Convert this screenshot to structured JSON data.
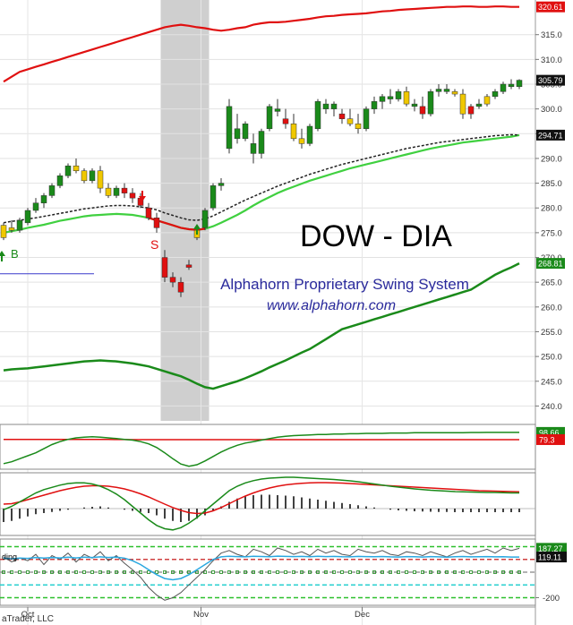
{
  "chart_data": {
    "type": "candlestick",
    "title": "DOW - DIA",
    "subtitle": "Alphahorn Proprietary Swing System",
    "url": "www.alphahorn.com",
    "credit": "aTrader, LLC",
    "signals": {
      "buy": "B",
      "sell": "S"
    },
    "x_ticks": [
      "Oct",
      "Nov",
      "Dec"
    ],
    "y_ticks": [
      240,
      245,
      250,
      255,
      260,
      265,
      270,
      275,
      280,
      285,
      290,
      295,
      300,
      305,
      310,
      315
    ],
    "ylim": [
      237,
      322
    ],
    "grid": true,
    "badges": {
      "upper_band": "320.61",
      "last_price": "305.79",
      "moving_average": "294.71",
      "lower_band": "268.81"
    },
    "candles": [
      [
        274.0,
        277.0,
        273.5,
        276.5,
        "y"
      ],
      [
        276.0,
        277.5,
        275.0,
        275.5,
        "y"
      ],
      [
        275.5,
        278.0,
        275.0,
        277.5,
        "g"
      ],
      [
        277.0,
        280.0,
        276.5,
        279.5,
        "g"
      ],
      [
        279.5,
        282.0,
        279.0,
        281.0,
        "g"
      ],
      [
        281.0,
        283.0,
        280.0,
        282.5,
        "g"
      ],
      [
        282.5,
        285.0,
        282.0,
        284.5,
        "g"
      ],
      [
        284.5,
        287.0,
        284.0,
        286.5,
        "g"
      ],
      [
        286.5,
        289.0,
        286.0,
        288.5,
        "g"
      ],
      [
        288.5,
        290.0,
        287.0,
        287.5,
        "y"
      ],
      [
        287.5,
        288.0,
        285.0,
        285.5,
        "y"
      ],
      [
        285.5,
        288.0,
        285.0,
        287.5,
        "g"
      ],
      [
        287.5,
        288.5,
        283.0,
        284.0,
        "y"
      ],
      [
        284.0,
        285.0,
        282.0,
        282.5,
        "y"
      ],
      [
        282.5,
        284.5,
        282.0,
        284.0,
        "g"
      ],
      [
        284.0,
        285.0,
        282.0,
        283.0,
        "r"
      ],
      [
        283.0,
        284.0,
        281.0,
        282.0,
        "r"
      ],
      [
        282.0,
        283.0,
        280.0,
        280.5,
        "r"
      ],
      [
        280.0,
        281.0,
        277.5,
        278.0,
        "r"
      ],
      [
        278.0,
        279.0,
        275.0,
        276.0,
        "r"
      ],
      [
        270.0,
        271.5,
        265.0,
        266.0,
        "r"
      ],
      [
        266.0,
        267.0,
        264.0,
        265.0,
        "r"
      ],
      [
        265.0,
        266.0,
        262.0,
        263.0,
        "r"
      ],
      [
        268.0,
        269.5,
        267.5,
        268.5,
        "r"
      ],
      [
        274.0,
        276.0,
        273.5,
        275.5,
        "y"
      ],
      [
        276.0,
        280.0,
        275.5,
        279.5,
        "g"
      ],
      [
        280.0,
        285.0,
        279.5,
        284.5,
        "g"
      ],
      [
        284.5,
        286.0,
        283.5,
        285.0,
        "g"
      ],
      [
        292.0,
        302.0,
        291.0,
        300.5,
        "g"
      ],
      [
        296.0,
        299.0,
        293.0,
        294.0,
        "g"
      ],
      [
        294.0,
        297.5,
        293.5,
        297.0,
        "g"
      ],
      [
        293.0,
        295.0,
        289.0,
        291.0,
        "g"
      ],
      [
        291.0,
        296.0,
        290.0,
        295.5,
        "g"
      ],
      [
        296.0,
        301.0,
        295.5,
        300.5,
        "g"
      ],
      [
        300.0,
        302.0,
        298.5,
        299.5,
        "g"
      ],
      [
        298.0,
        300.0,
        296.0,
        297.0,
        "r"
      ],
      [
        297.0,
        299.0,
        293.5,
        294.0,
        "y"
      ],
      [
        294.0,
        296.0,
        292.0,
        293.0,
        "y"
      ],
      [
        293.0,
        297.0,
        292.5,
        296.5,
        "g"
      ],
      [
        296.0,
        302.0,
        295.5,
        301.5,
        "g"
      ],
      [
        301.0,
        302.0,
        299.0,
        300.0,
        "g"
      ],
      [
        300.0,
        301.5,
        298.5,
        301.0,
        "g"
      ],
      [
        299.0,
        300.0,
        297.0,
        298.0,
        "r"
      ],
      [
        298.0,
        300.0,
        296.5,
        297.0,
        "y"
      ],
      [
        297.0,
        299.0,
        295.0,
        296.0,
        "y"
      ],
      [
        296.0,
        300.5,
        295.5,
        300.0,
        "g"
      ],
      [
        300.0,
        302.5,
        299.0,
        301.5,
        "g"
      ],
      [
        301.5,
        303.0,
        300.0,
        302.5,
        "g"
      ],
      [
        302.5,
        304.0,
        301.0,
        302.0,
        "g"
      ],
      [
        302.0,
        304.0,
        301.5,
        303.5,
        "g"
      ],
      [
        303.5,
        304.5,
        300.5,
        301.0,
        "y"
      ],
      [
        301.0,
        302.0,
        299.5,
        300.5,
        "g"
      ],
      [
        300.5,
        302.5,
        298.0,
        299.0,
        "r"
      ],
      [
        299.0,
        304.0,
        298.5,
        303.5,
        "g"
      ],
      [
        303.5,
        305.0,
        302.5,
        304.0,
        "g"
      ],
      [
        304.0,
        305.0,
        303.0,
        303.5,
        "g"
      ],
      [
        303.5,
        304.0,
        302.5,
        303.0,
        "y"
      ],
      [
        303.0,
        304.0,
        298.0,
        299.0,
        "y"
      ],
      [
        299.0,
        301.0,
        298.0,
        300.5,
        "r"
      ],
      [
        300.5,
        302.0,
        300.0,
        301.0,
        "g"
      ],
      [
        301.0,
        303.0,
        300.5,
        302.5,
        "y"
      ],
      [
        302.5,
        304.0,
        302.0,
        303.5,
        "g"
      ],
      [
        303.5,
        305.5,
        303.0,
        305.0,
        "g"
      ],
      [
        305.0,
        306.0,
        304.0,
        304.5,
        "g"
      ],
      [
        304.5,
        306.0,
        304.0,
        305.8,
        "g"
      ]
    ],
    "upper_band": [
      305.5,
      306.5,
      307.5,
      308,
      308.5,
      309,
      309.5,
      310,
      310.5,
      311,
      311.5,
      312,
      312.5,
      313,
      313.5,
      314,
      314.5,
      315,
      315.5,
      316,
      316.5,
      316.8,
      317,
      316.8,
      316.5,
      316.3,
      316,
      315.8,
      316,
      316.3,
      316.5,
      317,
      317.3,
      317.5,
      317.5,
      317.6,
      317.8,
      318,
      318.2,
      318.5,
      318.7,
      318.8,
      319,
      319.1,
      319.2,
      319.3,
      319.5,
      319.7,
      319.8,
      320,
      320.1,
      320.2,
      320.3,
      320.4,
      320.5,
      320.6,
      320.6,
      320.7,
      320.7,
      320.6,
      320.6,
      320.7,
      320.7,
      320.6,
      320.61
    ],
    "moving_average": [
      275,
      275.3,
      275.6,
      276,
      276.3,
      276.6,
      277,
      277.4,
      277.7,
      278,
      278.3,
      278.5,
      278.6,
      278.7,
      278.8,
      278.7,
      278.6,
      278.3,
      278,
      277.5,
      277,
      276.5,
      276,
      275.7,
      275.6,
      275.8,
      276.3,
      277,
      277.8,
      278.6,
      279.5,
      280.5,
      281.4,
      282.2,
      283,
      283.7,
      284.3,
      284.9,
      285.5,
      286,
      286.5,
      287,
      287.5,
      288,
      288.4,
      288.8,
      289.2,
      289.6,
      290,
      290.4,
      290.8,
      291.2,
      291.6,
      292,
      292.3,
      292.6,
      292.9,
      293.2,
      293.4,
      293.6,
      293.8,
      294,
      294.2,
      294.4,
      294.71
    ],
    "trend_line": [
      277,
      277.3,
      277.5,
      277.8,
      278,
      278.3,
      278.6,
      278.9,
      279.2,
      279.5,
      279.8,
      280,
      280.2,
      280.4,
      280.5,
      280.5,
      280.4,
      280.2,
      280,
      279.6,
      279,
      278.5,
      278,
      277.6,
      277.5,
      277.8,
      278.4,
      279.2,
      280,
      280.8,
      281.6,
      282.3,
      283,
      283.7,
      284.4,
      285,
      285.6,
      286.2,
      286.8,
      287.3,
      287.8,
      288.3,
      288.8,
      289.2,
      289.6,
      290,
      290.4,
      290.8,
      291.2,
      291.6,
      292,
      292.3,
      292.6,
      292.9,
      293.2,
      293.4,
      293.6,
      293.8,
      294,
      294.2,
      294.4,
      294.6,
      294.7,
      294.8,
      294.71
    ],
    "lower_band": [
      247.2,
      247.4,
      247.5,
      247.6,
      247.8,
      248,
      248.2,
      248.4,
      248.6,
      248.8,
      249,
      249.1,
      249.2,
      249.1,
      249,
      248.8,
      248.6,
      248.3,
      248,
      247.5,
      247,
      246.5,
      246,
      245.3,
      244.5,
      243.8,
      243.5,
      244,
      244.5,
      245,
      245.6,
      246.3,
      247,
      247.8,
      248.5,
      249.2,
      250,
      250.8,
      251.5,
      252.5,
      253.5,
      254.5,
      255.5,
      256,
      256.5,
      257,
      257.5,
      258,
      258.5,
      259,
      259.5,
      260,
      260.5,
      261,
      261.5,
      262,
      262.5,
      263,
      263.5,
      264.5,
      265.5,
      266.5,
      267.3,
      268,
      268.81
    ],
    "support_line_price": 266.7,
    "sell_zone_start": 19.5,
    "sell_zone_end": 25.5,
    "buy_signal_index": 0,
    "buy_signal_index_2": 24,
    "sell_signal_index": 17,
    "osc1": {
      "badge_green": "98.66",
      "badge_red": "79.3",
      "ylim": [
        0,
        120
      ],
      "green_line": [
        15,
        20,
        28,
        36,
        44,
        55,
        66,
        74,
        80,
        84,
        86,
        87,
        86,
        84,
        82,
        80,
        78,
        74,
        68,
        58,
        44,
        28,
        14,
        8,
        12,
        22,
        34,
        46,
        56,
        64,
        70,
        74,
        78,
        82,
        86,
        88,
        90,
        91,
        92,
        93,
        93,
        94,
        94,
        95,
        95,
        96,
        96,
        96,
        97,
        97,
        97,
        98,
        98,
        98,
        98,
        98,
        98,
        98,
        98.5,
        98.5,
        98.6,
        98.6,
        98.6,
        98.66,
        98.66
      ],
      "red_line": [
        80,
        80,
        80,
        80,
        80,
        80,
        80,
        80,
        80,
        80,
        80,
        79.8,
        79.7,
        79.6,
        79.5,
        79.4,
        79.3,
        79.3,
        79.3,
        79.3,
        79.3,
        79.3,
        79.3,
        79.3,
        79.3,
        79.3,
        79.3,
        79.3,
        79.3,
        79.3,
        79.3,
        79.3,
        79.3,
        79.3,
        79.3,
        79.3,
        79.3,
        79.3,
        79.3,
        79.3,
        79.3,
        79.3,
        79.3,
        79.3,
        79.3,
        79.3,
        79.3,
        79.3,
        79.3,
        79.3,
        79.3,
        79.3,
        79.3,
        79.3,
        79.3,
        79.3,
        79.3,
        79.3,
        79.3,
        79.3,
        79.3,
        79.3,
        79.3,
        79.3,
        79.3
      ]
    },
    "osc2": {
      "ylim": [
        -1.2,
        1.6
      ],
      "green_line": [
        -0.05,
        0.1,
        0.3,
        0.5,
        0.7,
        0.85,
        0.95,
        1.05,
        1.12,
        1.15,
        1.15,
        1.1,
        1.0,
        0.85,
        0.65,
        0.4,
        0.1,
        -0.2,
        -0.5,
        -0.75,
        -0.9,
        -0.95,
        -0.85,
        -0.65,
        -0.4,
        -0.1,
        0.2,
        0.5,
        0.8,
        1.0,
        1.15,
        1.25,
        1.32,
        1.36,
        1.38,
        1.4,
        1.4,
        1.38,
        1.36,
        1.34,
        1.32,
        1.3,
        1.27,
        1.24,
        1.2,
        1.15,
        1.1,
        1.05,
        1.0,
        0.96,
        0.92,
        0.88,
        0.85,
        0.82,
        0.8,
        0.78,
        0.76,
        0.75,
        0.74,
        0.73,
        0.72,
        0.72,
        0.71,
        0.7,
        0.7
      ],
      "red_line": [
        0.2,
        0.22,
        0.3,
        0.4,
        0.5,
        0.6,
        0.7,
        0.8,
        0.88,
        0.95,
        1.0,
        1.02,
        1.02,
        1.0,
        0.95,
        0.88,
        0.78,
        0.66,
        0.52,
        0.36,
        0.2,
        0.05,
        -0.08,
        -0.18,
        -0.22,
        -0.2,
        -0.1,
        0.05,
        0.22,
        0.4,
        0.56,
        0.7,
        0.82,
        0.92,
        1.0,
        1.06,
        1.1,
        1.13,
        1.15,
        1.16,
        1.16,
        1.15,
        1.14,
        1.12,
        1.1,
        1.08,
        1.06,
        1.04,
        1.02,
        1.0,
        0.98,
        0.96,
        0.94,
        0.92,
        0.9,
        0.88,
        0.86,
        0.84,
        0.82,
        0.8,
        0.79,
        0.78,
        0.77,
        0.76,
        0.75
      ],
      "histogram": [
        -0.6,
        -0.55,
        -0.45,
        -0.35,
        -0.25,
        -0.2,
        -0.15,
        -0.1,
        -0.05,
        0,
        0.05,
        0.08,
        0.1,
        0.05,
        0,
        -0.05,
        -0.1,
        -0.15,
        -0.2,
        -0.3,
        -0.45,
        -0.55,
        -0.6,
        -0.55,
        -0.45,
        -0.3,
        -0.1,
        0.1,
        0.3,
        0.45,
        0.55,
        0.6,
        0.62,
        0.62,
        0.6,
        0.58,
        0.55,
        0.5,
        0.45,
        0.4,
        0.35,
        0.3,
        0.25,
        0.2,
        0.15,
        0.1,
        0.05,
        0,
        -0.05,
        -0.08,
        -0.1,
        -0.12,
        -0.13,
        -0.14,
        -0.15,
        -0.15,
        -0.16,
        -0.16,
        -0.16,
        -0.16,
        -0.16,
        -0.16,
        -0.16,
        -0.16,
        -0.16
      ]
    },
    "osc3": {
      "label_prefix": "ding",
      "tick_label": "-200",
      "badge_top": "187.27",
      "badge_bottom": "119.11",
      "ylim": [
        -260,
        260
      ],
      "levels": [
        200,
        100,
        0,
        -100,
        -200
      ],
      "grey_line": [
        120,
        80,
        110,
        90,
        140,
        60,
        130,
        100,
        150,
        80,
        140,
        110,
        160,
        90,
        130,
        70,
        20,
        -40,
        -120,
        -180,
        -220,
        -200,
        -160,
        -100,
        -40,
        20,
        90,
        150,
        170,
        140,
        120,
        180,
        160,
        130,
        190,
        170,
        140,
        160,
        130,
        180,
        150,
        170,
        140,
        130,
        180,
        160,
        150,
        170,
        140,
        130,
        160,
        150,
        130,
        160,
        140,
        120,
        150,
        170,
        140,
        160,
        180,
        150,
        190,
        170,
        187
      ],
      "blue_line": [
        110,
        105,
        110,
        108,
        115,
        110,
        115,
        112,
        118,
        112,
        118,
        115,
        120,
        115,
        118,
        110,
        90,
        60,
        20,
        -20,
        -50,
        -60,
        -50,
        -20,
        20,
        60,
        100,
        120,
        125,
        122,
        120,
        125,
        123,
        121,
        126,
        124,
        122,
        124,
        121,
        125,
        122,
        124,
        121,
        120,
        124,
        122,
        121,
        123,
        120,
        119,
        122,
        121,
        119,
        122,
        120,
        118,
        121,
        123,
        120,
        121,
        122,
        120,
        121,
        119,
        119
      ]
    }
  }
}
